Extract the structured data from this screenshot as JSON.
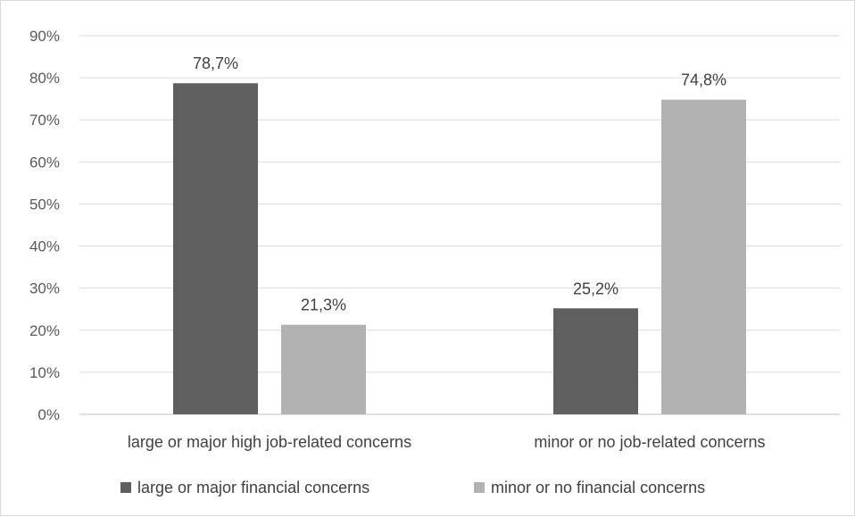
{
  "chart_data": {
    "type": "bar",
    "categories": [
      "large or major high job-related concerns",
      "minor or no job-related concerns"
    ],
    "series": [
      {
        "name": "large or major financial concerns",
        "values": [
          78.7,
          25.2
        ],
        "labels": [
          "78,7%",
          "25,2%"
        ],
        "color": "#5f5f5f"
      },
      {
        "name": "minor or no financial concerns",
        "values": [
          21.3,
          74.8
        ],
        "labels": [
          "21,3%",
          "74,8%"
        ],
        "color": "#b2b2b2"
      }
    ],
    "y_ticks": [
      "0%",
      "10%",
      "20%",
      "30%",
      "40%",
      "50%",
      "60%",
      "70%",
      "80%",
      "90%"
    ],
    "ylim": [
      0,
      90
    ],
    "grid": true,
    "legend_position": "bottom"
  }
}
